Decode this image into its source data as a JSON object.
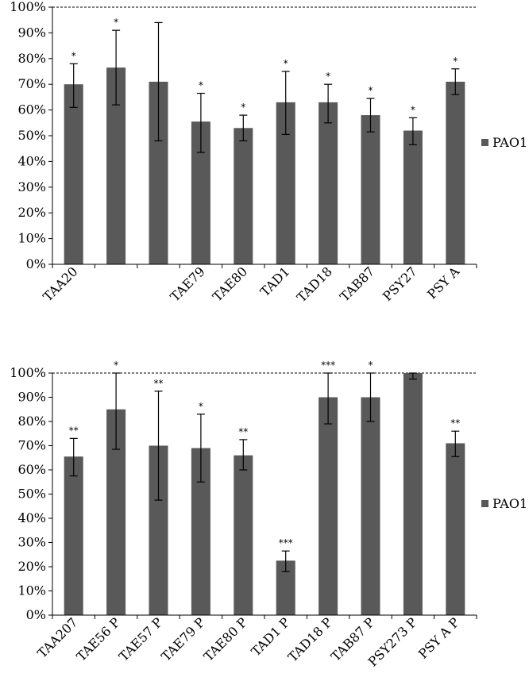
{
  "colors": {
    "bar": "#595959",
    "axis": "#000000",
    "reference_line": "#000000",
    "background": "#ffffff"
  },
  "chart_data": [
    {
      "type": "bar",
      "title": "",
      "xlabel": "",
      "ylabel": "",
      "ylim": [
        0,
        100
      ],
      "y_ticks": [
        "0%",
        "10%",
        "20%",
        "30%",
        "40%",
        "50%",
        "60%",
        "70%",
        "80%",
        "90%",
        "100%"
      ],
      "reference_line": 100,
      "grid": false,
      "legend": {
        "position": "right",
        "entries": [
          "PAO1"
        ]
      },
      "categories": [
        "TAA20",
        "",
        "",
        "TAE79",
        "TAE80",
        "TAD1",
        "TAD18",
        "TAB87",
        "PSY27",
        "PSY A"
      ],
      "series": [
        {
          "name": "PAO1",
          "values": [
            70,
            76.5,
            71,
            55.5,
            53,
            63,
            63,
            58,
            52,
            71
          ],
          "error_low": [
            61,
            62,
            48,
            43.5,
            48,
            50.5,
            55,
            51.5,
            46.5,
            66
          ],
          "error_high": [
            78,
            91,
            94,
            66.5,
            58,
            75,
            70,
            64.5,
            57,
            76
          ]
        }
      ],
      "significance": [
        "*",
        "*",
        "",
        "*",
        "*",
        "*",
        "*",
        "*",
        "*",
        "*"
      ]
    },
    {
      "type": "bar",
      "title": "",
      "xlabel": "",
      "ylabel": "",
      "ylim": [
        0,
        100
      ],
      "y_ticks": [
        "0%",
        "10%",
        "20%",
        "30%",
        "40%",
        "50%",
        "60%",
        "70%",
        "80%",
        "90%",
        "100%"
      ],
      "reference_line": 100,
      "grid": false,
      "legend": {
        "position": "right",
        "entries": [
          "PAO1"
        ]
      },
      "categories": [
        "TAA207",
        "TAE56 P",
        "TAE57 P",
        "TAE79 P",
        "TAE80 P",
        "TAD1 P",
        "TAD18 P",
        "TAB87 P",
        "PSY273 P",
        "PSY A P"
      ],
      "series": [
        {
          "name": "PAO1",
          "values": [
            65.5,
            85,
            70,
            69,
            66,
            22.5,
            90,
            90,
            100,
            71
          ],
          "error_low": [
            57.5,
            68.5,
            47.5,
            55,
            60,
            18,
            79,
            80,
            97.5,
            65.5
          ],
          "error_high": [
            73,
            100,
            92.5,
            83,
            72.5,
            26.5,
            100,
            100,
            100,
            76
          ]
        }
      ],
      "significance": [
        "**",
        "*",
        "**",
        "*",
        "**",
        "***",
        "***",
        "*",
        "",
        "**"
      ]
    }
  ]
}
